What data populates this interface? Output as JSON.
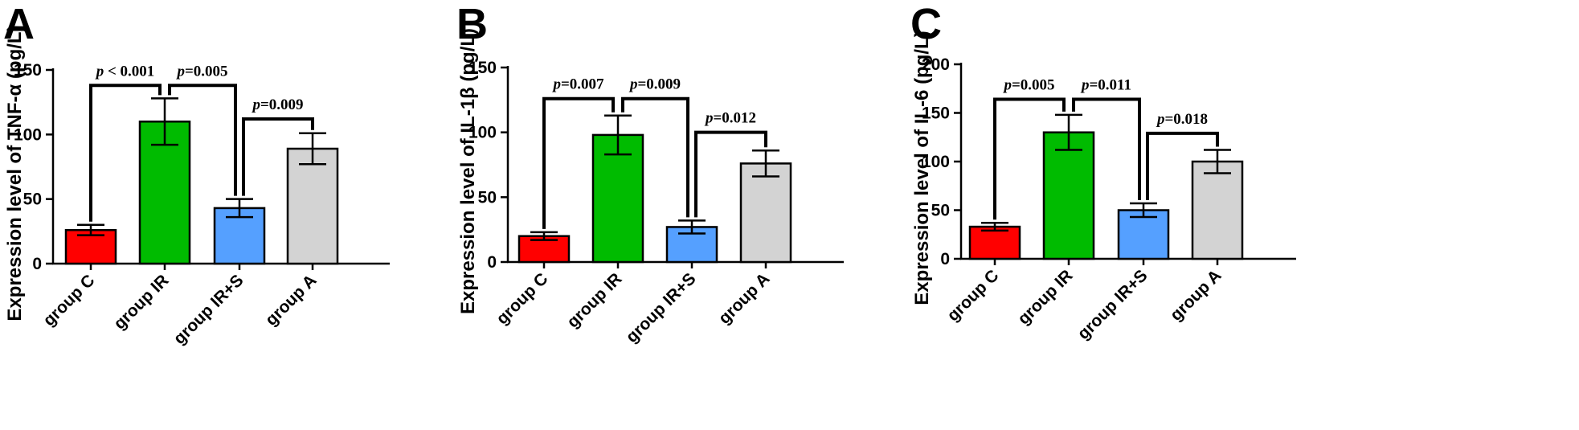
{
  "colors": {
    "group_c": "#ff0000",
    "group_ir": "#00bb00",
    "group_irs": "#55a0ff",
    "group_a": "#d3d3d3",
    "axis": "#000000"
  },
  "chart_data": [
    {
      "type": "bar",
      "panel": "A",
      "ylabel": "Expression level of TNF-α (pg/L)",
      "categories": [
        "group C",
        "group IR",
        "group IR+S",
        "group A"
      ],
      "values": [
        26,
        110,
        43,
        89
      ],
      "errors": [
        4,
        18,
        7,
        12
      ],
      "ylim": [
        0,
        150
      ],
      "yticks": [
        0,
        50,
        100,
        150
      ],
      "comparisons": [
        {
          "from": 0,
          "to": 1,
          "y": 138,
          "p_sym": "p",
          "p_rest": " < 0.001"
        },
        {
          "from": 1,
          "to": 2,
          "y": 138,
          "p_sym": "p",
          "p_rest": "=0.005"
        },
        {
          "from": 2,
          "to": 3,
          "y": 112,
          "p_sym": "p",
          "p_rest": "=0.009"
        }
      ]
    },
    {
      "type": "bar",
      "panel": "B",
      "ylabel": "Expression level of IL-1β (pg/L)",
      "categories": [
        "group C",
        "group IR",
        "group IR+S",
        "group A"
      ],
      "values": [
        20,
        98,
        27,
        76
      ],
      "errors": [
        3,
        15,
        5,
        10
      ],
      "ylim": [
        0,
        150
      ],
      "yticks": [
        0,
        50,
        100,
        150
      ],
      "comparisons": [
        {
          "from": 0,
          "to": 1,
          "y": 126,
          "p_sym": "p",
          "p_rest": "=0.007"
        },
        {
          "from": 1,
          "to": 2,
          "y": 126,
          "p_sym": "p",
          "p_rest": "=0.009"
        },
        {
          "from": 2,
          "to": 3,
          "y": 100,
          "p_sym": "p",
          "p_rest": "=0.012"
        }
      ]
    },
    {
      "type": "bar",
      "panel": "C",
      "ylabel": "Expression level of IL-6 (pg/L)",
      "categories": [
        "group C",
        "group IR",
        "group IR+S",
        "group A"
      ],
      "values": [
        33,
        130,
        50,
        100
      ],
      "errors": [
        4,
        18,
        7,
        12
      ],
      "ylim": [
        0,
        200
      ],
      "yticks": [
        0,
        50,
        100,
        150,
        200
      ],
      "comparisons": [
        {
          "from": 0,
          "to": 1,
          "y": 164,
          "p_sym": "p",
          "p_rest": "=0.005"
        },
        {
          "from": 1,
          "to": 2,
          "y": 164,
          "p_sym": "p",
          "p_rest": "=0.011"
        },
        {
          "from": 2,
          "to": 3,
          "y": 129,
          "p_sym": "p",
          "p_rest": "=0.018"
        }
      ]
    }
  ]
}
